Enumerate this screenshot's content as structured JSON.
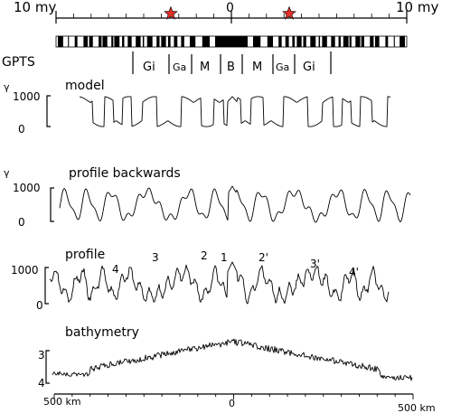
{
  "top_axis": {
    "left_label": "10 my",
    "center_label": "0",
    "right_label": "10 my",
    "star_color": "#e0302a"
  },
  "gpts": {
    "label": "GPTS",
    "chrons": [
      "Gi",
      "Ga",
      "M",
      "B",
      "M",
      "Ga",
      "Gi"
    ]
  },
  "panels": {
    "model": {
      "title": "model",
      "unit": "γ",
      "y_top": "1000",
      "y_bottom": "0"
    },
    "backwards": {
      "title": "profile backwards",
      "unit": "γ",
      "y_top": "1000",
      "y_bottom": "0"
    },
    "profile": {
      "title": "profile",
      "y_top": "1000",
      "y_bottom": "0",
      "anomalies": [
        "4",
        "3",
        "2",
        "1",
        "2'",
        "3'",
        "4'"
      ]
    },
    "bathymetry": {
      "title": "bathymetry",
      "y_top": "3",
      "y_bottom": "4"
    }
  },
  "bottom_axis": {
    "left_label": "500 km",
    "center_label": "0",
    "right_label": "500 km"
  }
}
